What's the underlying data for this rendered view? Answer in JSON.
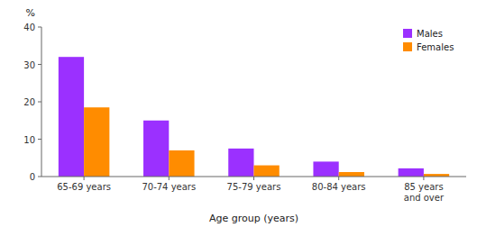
{
  "chart_data": {
    "type": "bar",
    "categories": [
      "65-69 years",
      "70-74 years",
      "75-79 years",
      "80-84 years",
      "85 years\nand over"
    ],
    "series": [
      {
        "name": "Males",
        "color": "#9B30FF",
        "values": [
          32.0,
          15.0,
          7.5,
          4.0,
          2.2
        ]
      },
      {
        "name": "Females",
        "color": "#FF8C00",
        "values": [
          18.5,
          7.0,
          3.0,
          1.2,
          0.7
        ]
      }
    ],
    "x_label": "Age group (years)",
    "y_label": "%",
    "ylim": [
      0,
      40
    ],
    "yticks": [
      0,
      10,
      20,
      30,
      40
    ],
    "grid": false,
    "legend": "top-right"
  }
}
